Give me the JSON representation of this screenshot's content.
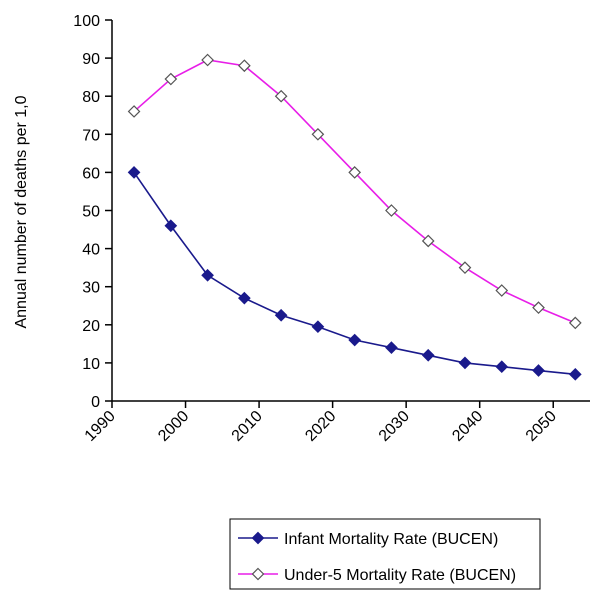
{
  "chart_data": {
    "type": "line",
    "title": "",
    "xlabel": "",
    "ylabel": "Annual number of deaths per 1,0",
    "ylim": [
      0,
      100
    ],
    "y_ticks": [
      "0",
      "10",
      "20",
      "30",
      "40",
      "50",
      "60",
      "70",
      "80",
      "90",
      "100"
    ],
    "x_tick_labels": [
      "1990",
      "2000",
      "2010",
      "2020",
      "2030",
      "2040",
      "2050"
    ],
    "x": [
      1993,
      1998,
      2003,
      2008,
      2013,
      2018,
      2023,
      2028,
      2033,
      2038,
      2043,
      2048,
      2053
    ],
    "series": [
      {
        "name": "Infant Mortality Rate (BUCEN)",
        "color": "#1a1a8c",
        "marker": "filled-diamond",
        "values": [
          60,
          46,
          33,
          27,
          22.5,
          19.5,
          16,
          14,
          12,
          10,
          9,
          8,
          7
        ]
      },
      {
        "name": "Under-5 Mortality Rate (BUCEN)",
        "color": "#e81ee8",
        "marker": "hollow-diamond",
        "values": [
          76,
          84.5,
          89.5,
          88,
          80,
          70,
          60,
          50,
          42,
          35,
          29,
          24.5,
          20.5
        ]
      }
    ],
    "grid": false,
    "legend_position": "bottom"
  }
}
